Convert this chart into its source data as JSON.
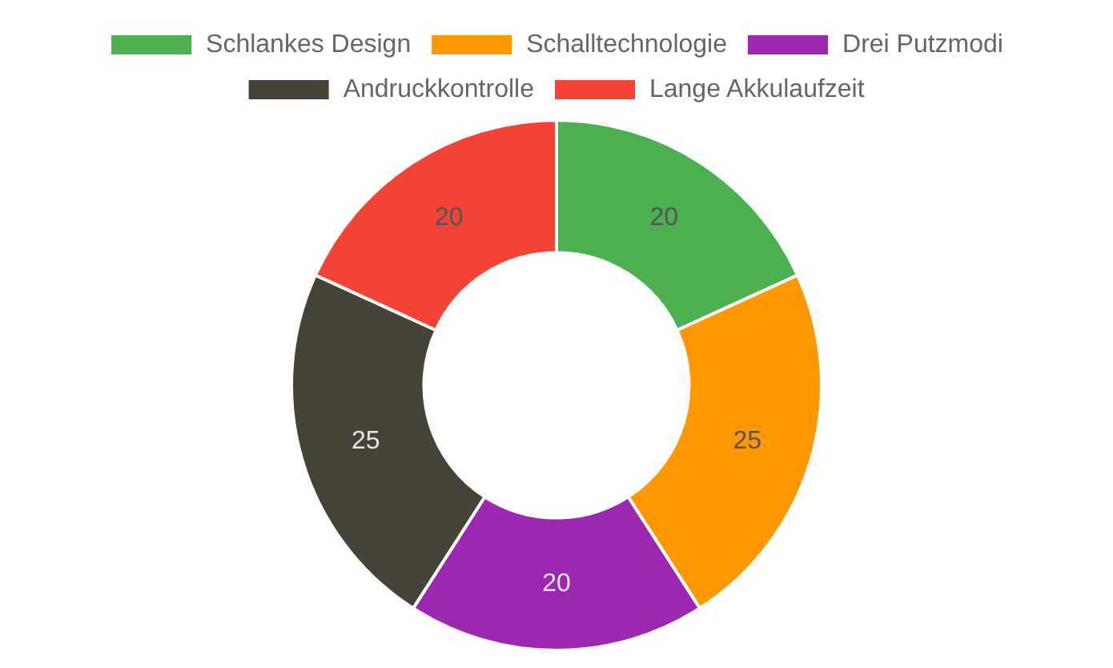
{
  "chart_data": {
    "type": "donut",
    "categories": [
      "Schlankes Design",
      "Schalltechnologie",
      "Drei Putzmodi",
      "Andruckkontrolle",
      "Lange Akkulaufzeit"
    ],
    "values": [
      20,
      25,
      20,
      25,
      20
    ],
    "colors": [
      "#4caf50",
      "#ff9800",
      "#9c27b0",
      "#454237",
      "#f44336"
    ],
    "data_labels": true,
    "legend": "top"
  }
}
